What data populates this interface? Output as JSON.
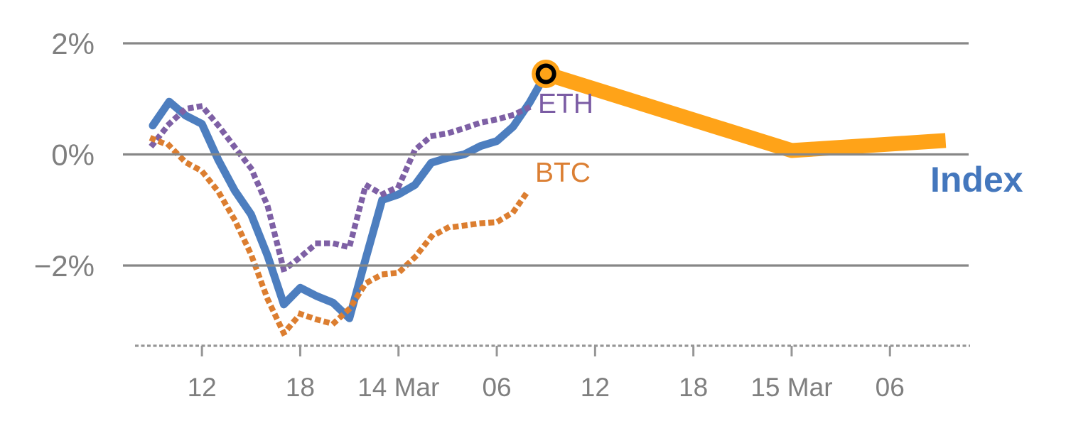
{
  "chart_data": {
    "type": "line",
    "title": "",
    "description": "Hourly percent change of ETH, BTC and a crypto Index from 13 Mar 09:00 to 14 Mar 09:00, with a thick forecast band for the Index extending to 15 Mar ~09:00",
    "x_axis": {
      "unit": "time",
      "start": "13 Mar 09:00",
      "interval_hours": 1,
      "tick_hours": [
        3,
        9,
        15,
        21,
        27,
        33,
        39,
        45
      ],
      "tick_labels": [
        "12",
        "18",
        "14 Mar",
        "06",
        "12",
        "18",
        "15 Mar",
        "06"
      ]
    },
    "y_axis": {
      "unit": "%",
      "tick_values": [
        2,
        0,
        -2
      ],
      "tick_labels": [
        "2%",
        "0%",
        "−2%"
      ],
      "range_shown": [
        -3.4,
        2.4
      ],
      "grid": true
    },
    "series": [
      {
        "name": "Index",
        "style": "solid",
        "color": "#4D7EBF",
        "values": [
          0.52,
          0.95,
          0.7,
          0.55,
          -0.1,
          -0.65,
          -1.08,
          -1.82,
          -2.7,
          -2.4,
          -2.55,
          -2.67,
          -2.95,
          -1.87,
          -0.82,
          -0.72,
          -0.55,
          -0.15,
          -0.06,
          0.0,
          0.15,
          0.24,
          0.5,
          0.93,
          1.45
        ]
      },
      {
        "name": "ETH",
        "style": "dotted",
        "color": "#7E60A5",
        "values": [
          0.18,
          0.55,
          0.82,
          0.87,
          0.52,
          0.13,
          -0.25,
          -0.92,
          -2.08,
          -1.85,
          -1.6,
          -1.6,
          -1.67,
          -0.55,
          -0.72,
          -0.58,
          0.08,
          0.33,
          0.38,
          0.47,
          0.57,
          0.63,
          0.71,
          0.85
        ]
      },
      {
        "name": "BTC",
        "style": "dotted",
        "color": "#DC7E30",
        "values": [
          0.28,
          0.16,
          -0.14,
          -0.3,
          -0.67,
          -1.18,
          -1.8,
          -2.6,
          -3.22,
          -2.87,
          -2.97,
          -3.05,
          -2.78,
          -2.32,
          -2.16,
          -2.13,
          -1.85,
          -1.48,
          -1.32,
          -1.28,
          -1.24,
          -1.22,
          -1.04,
          -0.62
        ]
      }
    ],
    "forecast": {
      "name": "Index forecast",
      "color": "#FFA318",
      "points": [
        {
          "hour": 24,
          "value": 1.45
        },
        {
          "hour": 39,
          "value": 0.07
        },
        {
          "hour": 48.4,
          "value": 0.25
        }
      ]
    },
    "marker": {
      "hour": 24,
      "value": 1.45,
      "halo_color": "#FFA318",
      "ring_color": "#000000",
      "core_color": "#FFA318"
    },
    "colors": {
      "gridline": "#878787",
      "axis_dash": "#969696",
      "axis_text": "#7F7F7F"
    },
    "legend_position": "inline-end-of-line"
  },
  "labels": {
    "eth": "ETH",
    "btc": "BTC",
    "index": "Index"
  }
}
